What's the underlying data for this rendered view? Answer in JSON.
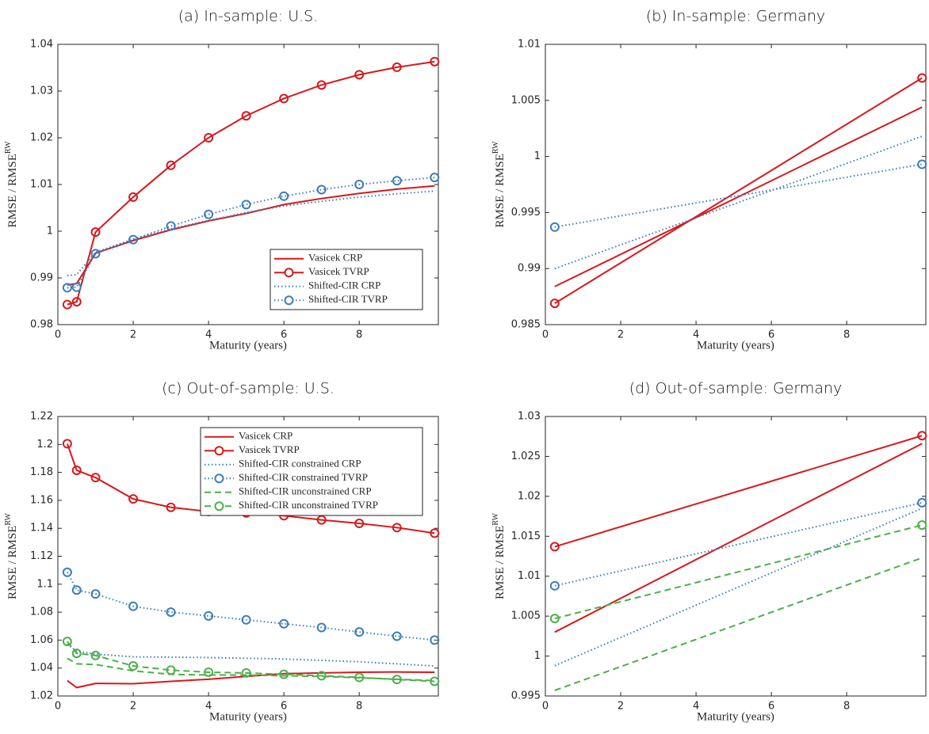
{
  "chart_data": [
    {
      "type": "line",
      "title": "(a) In-sample: U.S.",
      "xlabel": "Maturity (years)",
      "ylabel": "RMSE / RMSE",
      "ylabel_superscript": "RW",
      "x": [
        0.25,
        0.5,
        1,
        2,
        3,
        4,
        5,
        6,
        7,
        8,
        9,
        10
      ],
      "xlim": [
        0,
        10.1
      ],
      "xticks": [
        0,
        2,
        4,
        6,
        8
      ],
      "ylim": [
        0.98,
        1.04
      ],
      "yticks": [
        0.98,
        0.99,
        1,
        1.01,
        1.02,
        1.03,
        1.04
      ],
      "legend": "lower right",
      "series": [
        {
          "name": "Vasicek CRP",
          "color": "#d7191c",
          "dash": "solid",
          "marker": "none",
          "values": [
            0.9885,
            0.9888,
            0.9953,
            0.998,
            1.0003,
            1.0022,
            1.0038,
            1.0057,
            1.007,
            1.0081,
            1.009,
            1.0097
          ]
        },
        {
          "name": "Vasicek TVRP",
          "color": "#d7191c",
          "dash": "solid",
          "marker": "circle",
          "values": [
            0.9843,
            0.9849,
            0.9998,
            1.0073,
            1.0141,
            1.02,
            1.0247,
            1.0284,
            1.0313,
            1.0335,
            1.0351,
            1.0363
          ]
        },
        {
          "name": "Shifted-CIR CRP",
          "color": "#3a7dbb",
          "dash": "dotted",
          "marker": "none",
          "values": [
            0.9905,
            0.9907,
            0.9955,
            0.9983,
            1.0005,
            1.0023,
            1.004,
            1.0054,
            1.0064,
            1.0073,
            1.008,
            1.0086
          ]
        },
        {
          "name": "Shifted-CIR TVRP",
          "color": "#3a7dbb",
          "dash": "dotted",
          "marker": "circle",
          "values": [
            0.9879,
            0.988,
            0.9952,
            0.9982,
            1.0011,
            1.0036,
            1.0057,
            1.0075,
            1.0089,
            1.01,
            1.0108,
            1.0115
          ]
        }
      ]
    },
    {
      "type": "line",
      "title": "(b) In-sample: Germany",
      "xlabel": "Maturity (years)",
      "ylabel": "RMSE / RMSE",
      "ylabel_superscript": "RW",
      "x": [
        0.25,
        10
      ],
      "xlim": [
        0,
        10.1
      ],
      "xticks": [
        0,
        2,
        4,
        6,
        8
      ],
      "ylim": [
        0.985,
        1.01
      ],
      "yticks": [
        0.985,
        0.99,
        0.995,
        1,
        1.005,
        1.01
      ],
      "series": [
        {
          "color": "#d7191c",
          "dash": "solid",
          "marker": "none",
          "values": [
            0.9884,
            1.0044
          ]
        },
        {
          "color": "#d7191c",
          "dash": "solid",
          "marker": "circle",
          "values": [
            0.9869,
            1.007
          ]
        },
        {
          "color": "#3a7dbb",
          "dash": "dotted",
          "marker": "none",
          "values": [
            0.99,
            1.0018
          ]
        },
        {
          "color": "#3a7dbb",
          "dash": "dotted",
          "marker": "circle",
          "values": [
            0.9937,
            0.9993
          ]
        }
      ]
    },
    {
      "type": "line",
      "title": "(c) Out-of-sample: U.S.",
      "xlabel": "Maturity (years)",
      "ylabel": "RMSE / RMSE",
      "ylabel_superscript": "RW",
      "x": [
        0.25,
        0.5,
        1,
        2,
        3,
        4,
        5,
        6,
        7,
        8,
        9,
        10
      ],
      "xlim": [
        0,
        10.1
      ],
      "xticks": [
        0,
        2,
        4,
        6,
        8
      ],
      "ylim": [
        1.02,
        1.22
      ],
      "yticks": [
        1.02,
        1.04,
        1.06,
        1.08,
        1.1,
        1.12,
        1.14,
        1.16,
        1.18,
        1.2,
        1.22
      ],
      "legend": "upper right",
      "series": [
        {
          "name": "Vasicek CRP",
          "color": "#d7191c",
          "dash": "solid",
          "marker": "none",
          "values": [
            1.031,
            1.026,
            1.029,
            1.0288,
            1.0305,
            1.032,
            1.034,
            1.036,
            1.0365,
            1.037,
            1.0372,
            1.037
          ]
        },
        {
          "name": "Vasicek TVRP",
          "color": "#d7191c",
          "dash": "solid",
          "marker": "circle",
          "values": [
            1.2005,
            1.1815,
            1.1763,
            1.161,
            1.155,
            1.152,
            1.151,
            1.149,
            1.146,
            1.1435,
            1.1405,
            1.1365
          ]
        },
        {
          "name": "Shifted-CIR constrained CRP",
          "color": "#3a7dbb",
          "dash": "dotted",
          "marker": "none",
          "values": [
            1.057,
            1.052,
            1.05,
            1.048,
            1.0478,
            1.0475,
            1.047,
            1.0465,
            1.0455,
            1.0445,
            1.043,
            1.0415
          ]
        },
        {
          "name": "Shifted-CIR constrained TVRP",
          "color": "#3a7dbb",
          "dash": "dotted",
          "marker": "circle",
          "values": [
            1.1085,
            1.0958,
            1.093,
            1.0842,
            1.08,
            1.0773,
            1.0745,
            1.0717,
            1.069,
            1.0658,
            1.0628,
            1.06
          ]
        },
        {
          "name": "Shifted-CIR unconstrained CRP",
          "color": "#4daf4a",
          "dash": "dashed",
          "marker": "none",
          "values": [
            1.047,
            1.043,
            1.0425,
            1.038,
            1.0355,
            1.035,
            1.035,
            1.0345,
            1.034,
            1.033,
            1.032,
            1.031
          ]
        },
        {
          "name": "Shifted-CIR unconstrained TVRP",
          "color": "#4daf4a",
          "dash": "dashed",
          "marker": "circle",
          "values": [
            1.059,
            1.0505,
            1.049,
            1.0415,
            1.0385,
            1.037,
            1.0365,
            1.0355,
            1.0345,
            1.0333,
            1.0318,
            1.0305
          ]
        }
      ]
    },
    {
      "type": "line",
      "title": "(d) Out-of-sample: Germany",
      "xlabel": "Maturity (years)",
      "ylabel": "RMSE / RMSE",
      "ylabel_superscript": "RW",
      "x": [
        0.25,
        10
      ],
      "xlim": [
        0,
        10.1
      ],
      "xticks": [
        0,
        2,
        4,
        6,
        8
      ],
      "ylim": [
        0.995,
        1.03
      ],
      "yticks": [
        0.995,
        1,
        1.005,
        1.01,
        1.015,
        1.02,
        1.025,
        1.03
      ],
      "series": [
        {
          "color": "#d7191c",
          "dash": "solid",
          "marker": "none",
          "values": [
            1.003,
            1.0266
          ]
        },
        {
          "color": "#d7191c",
          "dash": "solid",
          "marker": "circle",
          "values": [
            1.0137,
            1.0276
          ]
        },
        {
          "color": "#3a7dbb",
          "dash": "dotted",
          "marker": "none",
          "values": [
            0.9988,
            1.0185
          ]
        },
        {
          "color": "#3a7dbb",
          "dash": "dotted",
          "marker": "circle",
          "values": [
            1.0088,
            1.0192
          ]
        },
        {
          "color": "#4daf4a",
          "dash": "dashed",
          "marker": "none",
          "values": [
            0.9957,
            1.0123
          ]
        },
        {
          "color": "#4daf4a",
          "dash": "dashed",
          "marker": "circle",
          "values": [
            1.0047,
            1.0164
          ]
        }
      ]
    }
  ]
}
